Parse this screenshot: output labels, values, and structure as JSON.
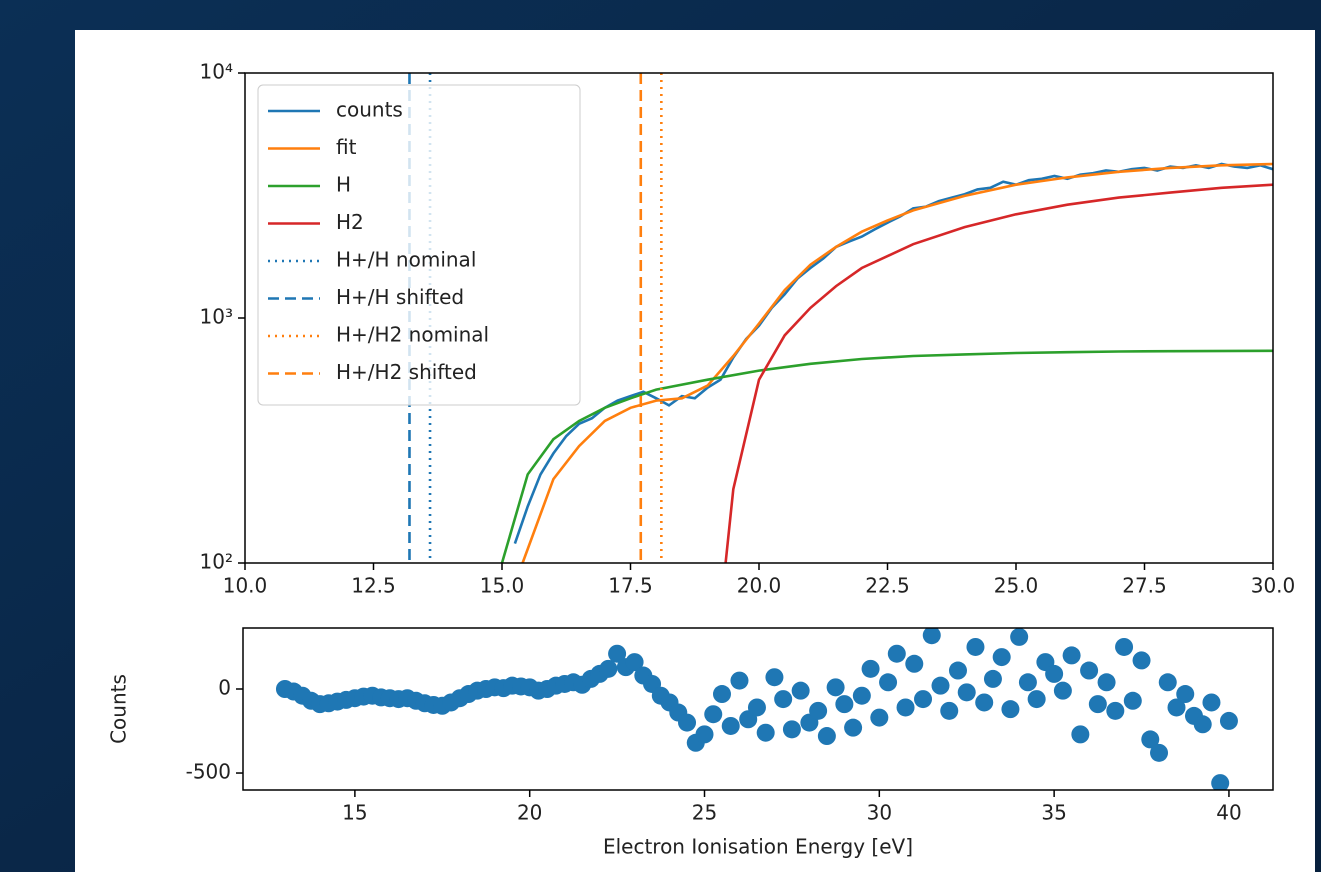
{
  "chart_data": [
    {
      "type": "line",
      "yscale": "log",
      "legend": "upper left",
      "xlim": [
        10,
        30
      ],
      "ylim": [
        100,
        10000
      ],
      "xticks": [
        {
          "value": 10,
          "label": "10.0"
        },
        12.5,
        {
          "value": 15,
          "label": "15.0"
        },
        17.5,
        {
          "value": 20,
          "label": "20.0"
        },
        22.5,
        {
          "value": 25,
          "label": "25.0"
        },
        27.5,
        {
          "value": 30,
          "label": "30.0"
        }
      ],
      "yticks": [
        {
          "value": 100,
          "label": "10²"
        },
        {
          "value": 1000,
          "label": "10³"
        },
        {
          "value": 10000,
          "label": "10⁴"
        }
      ],
      "series": [
        {
          "name": "counts",
          "color": "#1f77b4",
          "x": [
            15.25,
            15.5,
            15.75,
            16,
            16.25,
            16.5,
            16.75,
            17,
            17.25,
            17.5,
            17.75,
            18,
            18.25,
            18.5,
            18.75,
            19,
            19.25,
            19.5,
            19.75,
            20,
            20.25,
            20.5,
            20.75,
            21,
            21.25,
            21.5,
            21.75,
            22,
            22.25,
            22.5,
            22.75,
            23,
            23.25,
            23.5,
            23.75,
            24,
            24.25,
            24.5,
            24.75,
            25,
            25.25,
            25.5,
            25.75,
            26,
            26.25,
            26.5,
            26.75,
            27,
            27.25,
            27.5,
            27.75,
            28,
            28.25,
            28.5,
            28.75,
            29,
            29.25,
            29.5,
            29.75,
            30
          ],
          "values": [
            120,
            170,
            230,
            280,
            330,
            370,
            390,
            430,
            460,
            480,
            500,
            470,
            440,
            480,
            470,
            520,
            560,
            690,
            820,
            930,
            1100,
            1250,
            1450,
            1600,
            1750,
            1950,
            2050,
            2150,
            2300,
            2450,
            2600,
            2800,
            2850,
            3000,
            3100,
            3200,
            3350,
            3400,
            3600,
            3500,
            3650,
            3700,
            3800,
            3700,
            3850,
            3900,
            4000,
            3950,
            4050,
            4100,
            4000,
            4150,
            4100,
            4200,
            4100,
            4250,
            4150,
            4100,
            4200,
            4050
          ]
        },
        {
          "name": "fit",
          "color": "#ff7f0e",
          "x": [
            15.4,
            16,
            16.5,
            17,
            17.5,
            18,
            18.5,
            19,
            19.5,
            20,
            20.5,
            21,
            21.5,
            22,
            22.5,
            23,
            24,
            25,
            26,
            27,
            28,
            29,
            30
          ],
          "values": [
            100,
            220,
            300,
            380,
            430,
            460,
            470,
            530,
            700,
            950,
            1300,
            1650,
            1950,
            2250,
            2500,
            2750,
            3150,
            3500,
            3750,
            3950,
            4100,
            4200,
            4250
          ]
        },
        {
          "name": "H",
          "color": "#2ca02c",
          "x": [
            15,
            15.5,
            16,
            16.5,
            17,
            17.5,
            18,
            19,
            20,
            21,
            22,
            23,
            24,
            25,
            26,
            27,
            28,
            30
          ],
          "values": [
            100,
            230,
            320,
            380,
            430,
            470,
            510,
            560,
            610,
            650,
            680,
            700,
            710,
            720,
            725,
            730,
            732,
            735
          ]
        },
        {
          "name": "H2",
          "color": "#d62728",
          "x": [
            19.35,
            19.5,
            20,
            20.5,
            21,
            21.5,
            22,
            23,
            24,
            25,
            26,
            27,
            28,
            29,
            30
          ],
          "values": [
            100,
            200,
            560,
            850,
            1100,
            1350,
            1600,
            2000,
            2350,
            2650,
            2900,
            3100,
            3250,
            3400,
            3500
          ]
        },
        {
          "name": "H+/H nominal",
          "color": "#1f77b4",
          "dash": "dotted",
          "xline": 13.6
        },
        {
          "name": "H+/H shifted",
          "color": "#1f77b4",
          "dash": "dashed",
          "xline": 13.2
        },
        {
          "name": "H+/H2 nominal",
          "color": "#ff7f0e",
          "dash": "dotted",
          "xline": 18.1
        },
        {
          "name": "H+/H2 shifted",
          "color": "#ff7f0e",
          "dash": "dashed",
          "xline": 17.7
        }
      ]
    },
    {
      "type": "scatter",
      "xlabel": "Electron Ionisation Energy [eV]",
      "ylabel": "Counts",
      "color": "#1f77b4",
      "xlim": [
        11.8,
        41.26
      ],
      "ylim": [
        -601,
        363
      ],
      "xticks": [
        15,
        20,
        25,
        30,
        35,
        40
      ],
      "yticks": [
        -500,
        0
      ],
      "x": [
        13,
        13.25,
        13.5,
        13.75,
        14,
        14.25,
        14.5,
        14.75,
        15,
        15.25,
        15.5,
        15.75,
        16,
        16.25,
        16.5,
        16.75,
        17,
        17.25,
        17.5,
        17.75,
        18,
        18.25,
        18.5,
        18.75,
        19,
        19.25,
        19.5,
        19.75,
        20,
        20.25,
        20.5,
        20.75,
        21,
        21.25,
        21.5,
        21.75,
        22,
        22.25,
        22.5,
        22.75,
        23,
        23.25,
        23.5,
        23.75,
        24,
        24.25,
        24.5,
        24.75,
        25,
        25.25,
        25.5,
        25.75,
        26,
        26.25,
        26.5,
        26.75,
        27,
        27.25,
        27.5,
        27.75,
        28,
        28.25,
        28.5,
        28.75,
        29,
        29.25,
        29.5,
        29.75,
        30,
        30.25,
        30.5,
        30.75,
        31,
        31.25,
        31.5,
        31.75,
        32,
        32.25,
        32.5,
        32.75,
        33,
        33.25,
        33.5,
        33.75,
        34,
        34.25,
        34.5,
        34.75,
        35,
        35.25,
        35.5,
        35.75,
        36,
        36.25,
        36.5,
        36.75,
        37,
        37.25,
        37.5,
        37.75,
        38,
        38.25,
        38.5,
        38.75,
        39,
        39.25,
        39.5,
        39.75,
        40
      ],
      "values": [
        0,
        -15,
        -40,
        -70,
        -90,
        -85,
        -75,
        -65,
        -55,
        -45,
        -40,
        -50,
        -55,
        -60,
        -55,
        -70,
        -85,
        -95,
        -100,
        -80,
        -55,
        -30,
        -10,
        0,
        10,
        5,
        20,
        15,
        10,
        -10,
        0,
        20,
        30,
        40,
        25,
        60,
        90,
        120,
        210,
        130,
        160,
        80,
        30,
        -40,
        -80,
        -140,
        -200,
        -320,
        -270,
        -150,
        -30,
        -220,
        50,
        -180,
        -110,
        -260,
        70,
        -60,
        -240,
        -10,
        -200,
        -130,
        -280,
        10,
        -90,
        -230,
        -40,
        120,
        -170,
        40,
        210,
        -110,
        150,
        -60,
        320,
        20,
        -130,
        110,
        -20,
        250,
        -80,
        60,
        190,
        -120,
        310,
        40,
        -60,
        160,
        90,
        -10,
        200,
        -270,
        110,
        -90,
        40,
        -130,
        250,
        -70,
        170,
        -300,
        -380,
        40,
        -110,
        -30,
        -160,
        -210,
        -80,
        -560,
        -190
      ]
    }
  ]
}
